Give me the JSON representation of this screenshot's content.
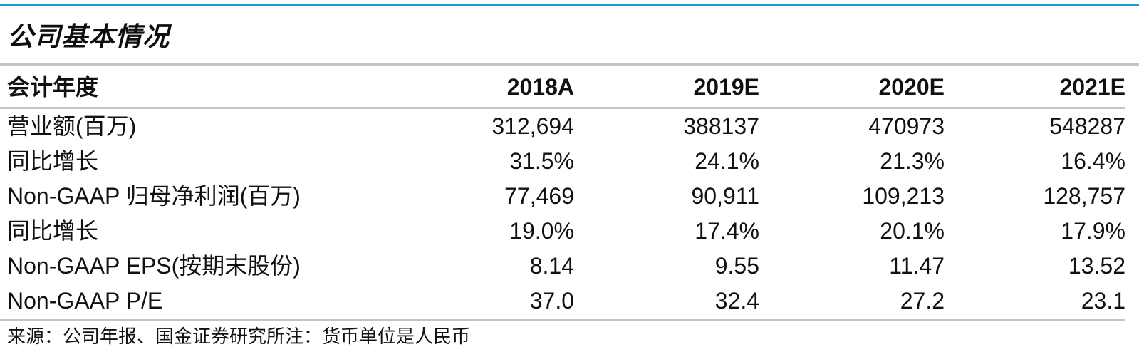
{
  "title": "公司基本情况",
  "table": {
    "header": {
      "label": "会计年度",
      "years": [
        "2018A",
        "2019E",
        "2020E",
        "2021E"
      ]
    },
    "rows": [
      {
        "label": "营业额(百万)",
        "values": [
          "312,694",
          "388137",
          "470973",
          "548287"
        ]
      },
      {
        "label": "同比增长",
        "values": [
          "31.5%",
          "24.1%",
          "21.3%",
          "16.4%"
        ]
      },
      {
        "label": "Non-GAAP 归母净利润(百万)",
        "values": [
          "77,469",
          "90,911",
          "109,213",
          "128,757"
        ]
      },
      {
        "label": "同比增长",
        "values": [
          "19.0%",
          "17.4%",
          "20.1%",
          "17.9%"
        ]
      },
      {
        "label": "Non-GAAP EPS(按期末股份)",
        "values": [
          "8.14",
          "9.55",
          "11.47",
          "13.52"
        ]
      },
      {
        "label": "Non-GAAP P/E",
        "values": [
          "37.0",
          "32.4",
          "27.2",
          "23.1"
        ]
      }
    ]
  },
  "source_note": "来源：公司年报、国金证券研究所注：货币单位是人民币",
  "colors": {
    "accent": "#1a9bd7",
    "rule": "#c4c4c4",
    "text": "#111111"
  }
}
